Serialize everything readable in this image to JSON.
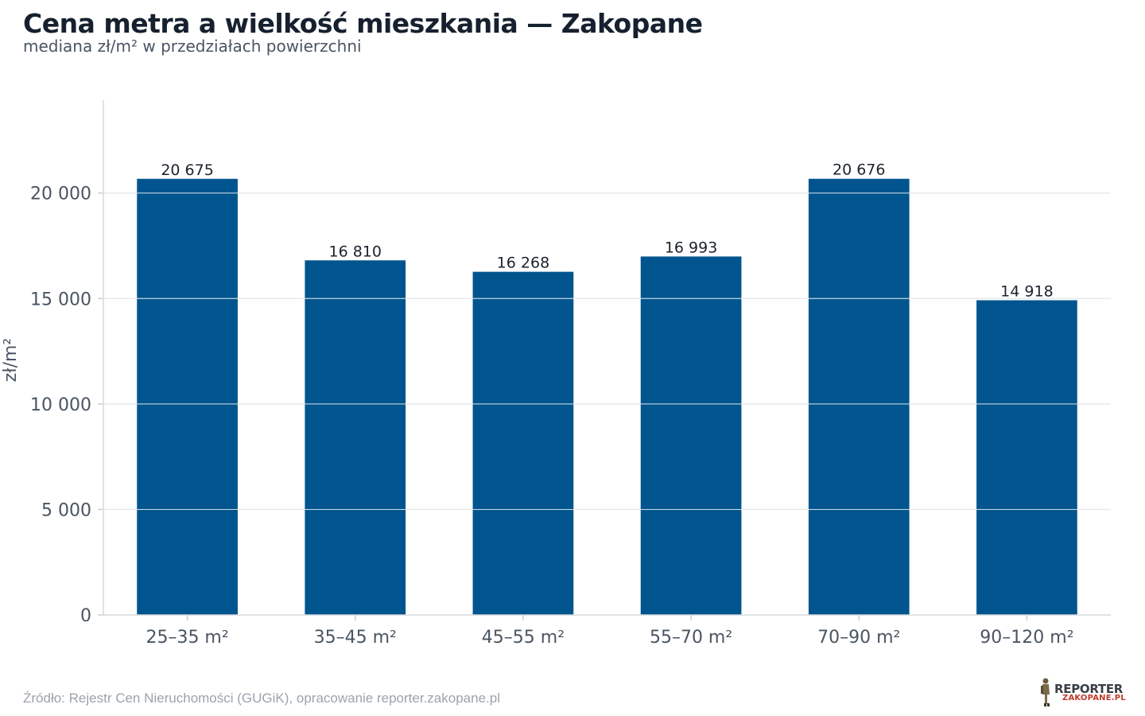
{
  "title": "Cena metra a wielkość mieszkania — Zakopane",
  "subtitle": "mediana zł/m² w przedziałach powierzchni",
  "footer": "Źródło: Rejestr Cen Nieruchomości (GUGiK), opracowanie reporter.zakopane.pl",
  "logo": {
    "line1": "REPORTER",
    "line2": "ZAKOPANE.PL"
  },
  "colors": {
    "bar": "#00558e",
    "grid": "#e3e6ea",
    "axis": "#4a5563"
  },
  "chart_data": {
    "type": "bar",
    "categories": [
      "25–35 m²",
      "35–45 m²",
      "45–55 m²",
      "55–70 m²",
      "70–90 m²",
      "90–120 m²"
    ],
    "values": [
      20675,
      16810,
      16268,
      16993,
      20676,
      14918
    ],
    "value_labels": [
      "20 675",
      "16 810",
      "16 268",
      "16 993",
      "20 676",
      "14 918"
    ],
    "ylabel": "zł/m²",
    "xlabel": "",
    "ylim": [
      0,
      24400
    ],
    "yticks": [
      0,
      5000,
      10000,
      15000,
      20000
    ],
    "ytick_labels": [
      "0",
      "5 000",
      "10 000",
      "15 000",
      "20 000"
    ],
    "grid": true
  }
}
